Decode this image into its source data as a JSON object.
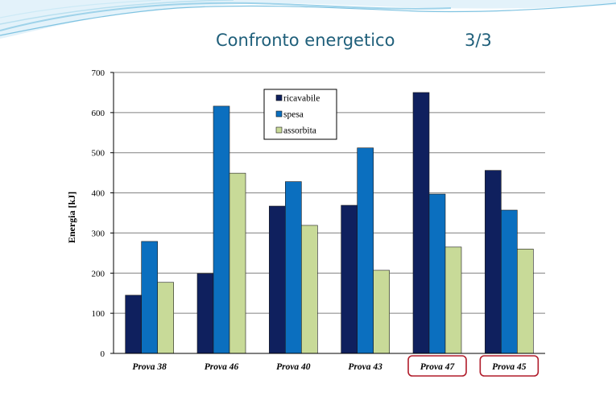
{
  "slide": {
    "title": "Confronto energetico",
    "page": "3/3"
  },
  "colors": {
    "ricavabile": "#0f205e",
    "spesa": "#0b6fbf",
    "assorbita": "#c8da98",
    "highlight": "#b01c2a",
    "gridline": "#808080",
    "title": "#1f5f7a"
  },
  "chart_data": {
    "type": "bar",
    "title": "",
    "xlabel": "",
    "ylabel": "Energia [kJ]",
    "categories": [
      "Prova 38",
      "Prova 46",
      "Prova 40",
      "Prova 43",
      "Prova 47",
      "Prova 45"
    ],
    "highlighted_categories": [
      "Prova 47",
      "Prova 45"
    ],
    "ylim": [
      0,
      700
    ],
    "yticks": [
      0,
      100,
      200,
      300,
      400,
      500,
      600,
      700
    ],
    "grid": true,
    "legend_position": "top-center",
    "series": [
      {
        "name": "ricavabile",
        "values": [
          145,
          199,
          367,
          369,
          650,
          456
        ]
      },
      {
        "name": "spesa",
        "values": [
          279,
          616,
          428,
          512,
          397,
          357
        ]
      },
      {
        "name": "assorbita",
        "values": [
          177,
          449,
          319,
          207,
          265,
          260
        ]
      }
    ]
  }
}
